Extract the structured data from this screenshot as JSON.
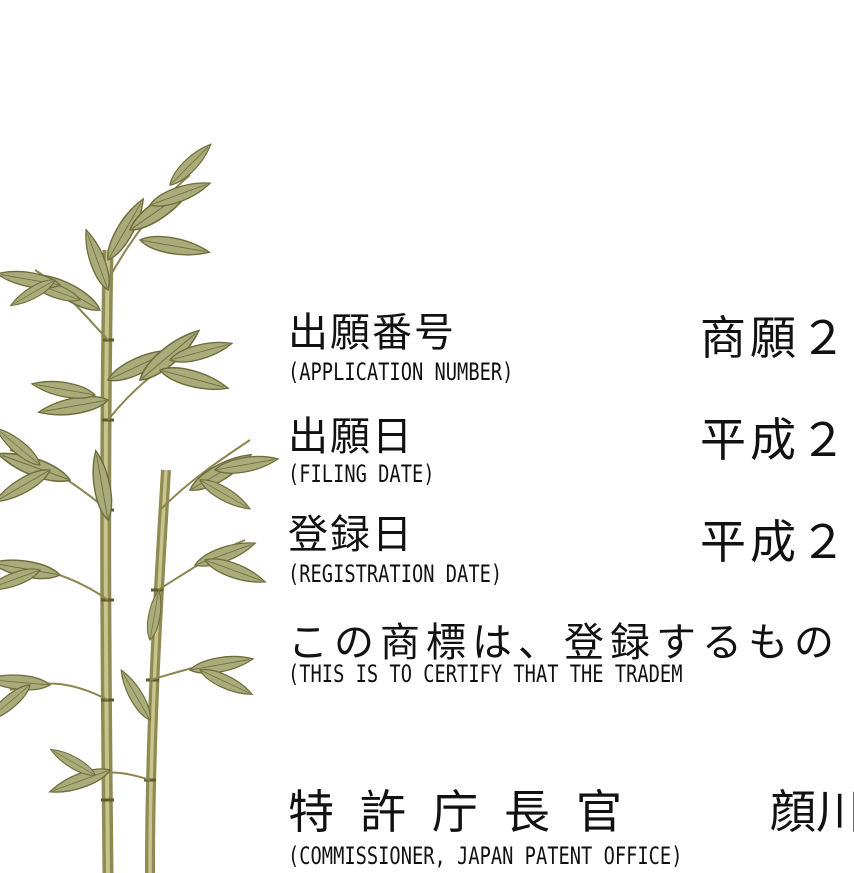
{
  "illustration": {
    "name": "bamboo-illustration",
    "stalk_color": "#9c9a5c",
    "leaf_color": "#a8ac78",
    "node_color": "#6f6a36"
  },
  "fields": {
    "application_number": {
      "label_jp": "出願番号",
      "label_en": "(APPLICATION NUMBER)",
      "value": "商願２"
    },
    "filing_date": {
      "label_jp": "出願日",
      "label_en": "(FILING DATE)",
      "value": "平成２"
    },
    "registration_date": {
      "label_jp": "登録日",
      "label_en": "(REGISTRATION DATE)",
      "value": "平成２"
    }
  },
  "statement": {
    "jp": "この商標は、登録するもの",
    "en": "(THIS IS TO CERTIFY THAT THE TRADEM"
  },
  "commissioner": {
    "title_jp": "特許庁長官",
    "name_jp": "顔川",
    "title_en": "(COMMISSIONER, JAPAN PATENT OFFICE)"
  }
}
